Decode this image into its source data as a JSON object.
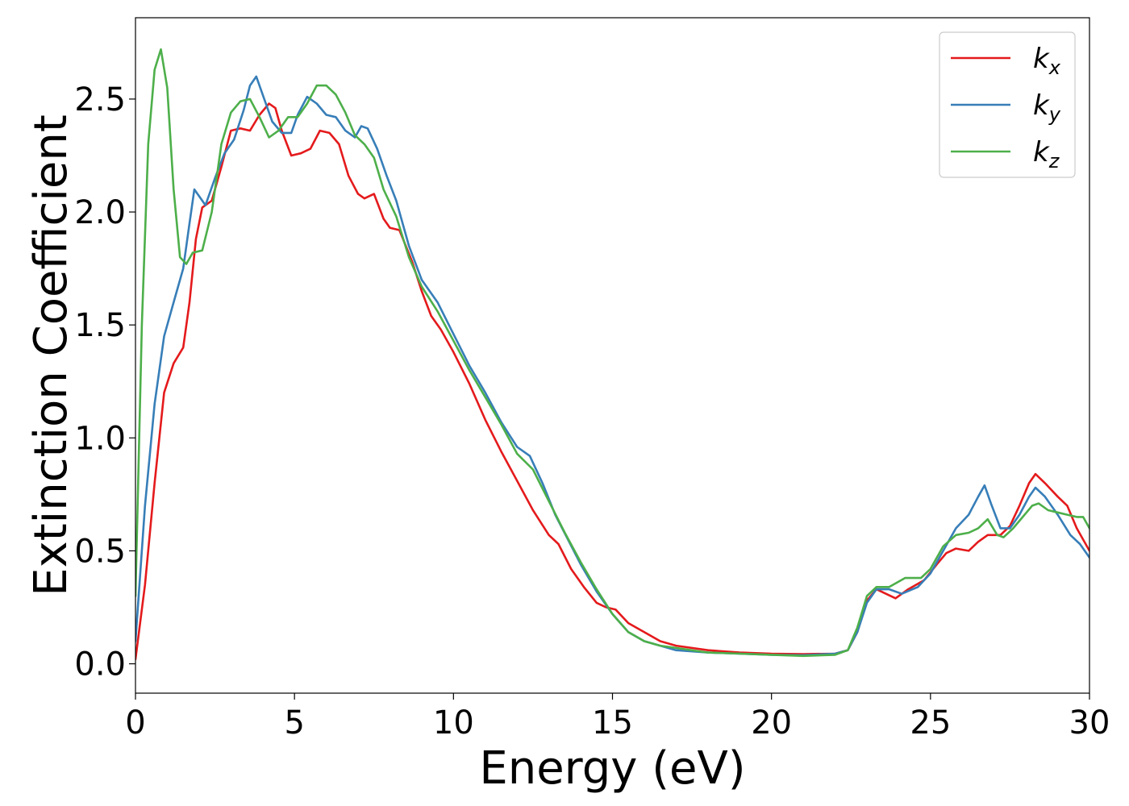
{
  "chart_data": {
    "type": "line",
    "xlabel": "Energy (eV)",
    "ylabel": "Extinction Coefficient",
    "xlim": [
      0,
      30
    ],
    "ylim": [
      -0.13,
      2.86
    ],
    "xticks": [
      "0",
      "5",
      "10",
      "15",
      "20",
      "25",
      "30"
    ],
    "yticks": [
      "0.0",
      "0.5",
      "1.0",
      "1.5",
      "2.0",
      "2.5"
    ],
    "grid": false,
    "legend_position": "top-right",
    "series": [
      {
        "name": "k_x",
        "label_base": "k",
        "label_sub": "x",
        "color": "#e41a1c",
        "points": [
          [
            0,
            0.02
          ],
          [
            0.3,
            0.35
          ],
          [
            0.6,
            0.8
          ],
          [
            0.9,
            1.2
          ],
          [
            1.2,
            1.33
          ],
          [
            1.5,
            1.4
          ],
          [
            1.7,
            1.6
          ],
          [
            1.9,
            1.88
          ],
          [
            2.1,
            2.02
          ],
          [
            2.4,
            2.05
          ],
          [
            2.7,
            2.2
          ],
          [
            3.0,
            2.36
          ],
          [
            3.3,
            2.37
          ],
          [
            3.6,
            2.36
          ],
          [
            3.9,
            2.43
          ],
          [
            4.2,
            2.48
          ],
          [
            4.4,
            2.46
          ],
          [
            4.6,
            2.36
          ],
          [
            4.9,
            2.25
          ],
          [
            5.2,
            2.26
          ],
          [
            5.5,
            2.28
          ],
          [
            5.8,
            2.36
          ],
          [
            6.1,
            2.35
          ],
          [
            6.4,
            2.3
          ],
          [
            6.7,
            2.16
          ],
          [
            7.0,
            2.08
          ],
          [
            7.2,
            2.06
          ],
          [
            7.5,
            2.08
          ],
          [
            7.8,
            1.97
          ],
          [
            8.0,
            1.93
          ],
          [
            8.3,
            1.92
          ],
          [
            8.7,
            1.78
          ],
          [
            9.0,
            1.65
          ],
          [
            9.3,
            1.54
          ],
          [
            9.6,
            1.48
          ],
          [
            10,
            1.38
          ],
          [
            10.5,
            1.24
          ],
          [
            11,
            1.08
          ],
          [
            11.5,
            0.94
          ],
          [
            12,
            0.81
          ],
          [
            12.5,
            0.68
          ],
          [
            13,
            0.57
          ],
          [
            13.3,
            0.53
          ],
          [
            13.7,
            0.42
          ],
          [
            14.1,
            0.34
          ],
          [
            14.5,
            0.27
          ],
          [
            14.8,
            0.25
          ],
          [
            15.1,
            0.24
          ],
          [
            15.5,
            0.18
          ],
          [
            16,
            0.14
          ],
          [
            16.5,
            0.1
          ],
          [
            17,
            0.08
          ],
          [
            18,
            0.06
          ],
          [
            19,
            0.05
          ],
          [
            20,
            0.045
          ],
          [
            21,
            0.043
          ],
          [
            22,
            0.045
          ],
          [
            22.4,
            0.06
          ],
          [
            22.7,
            0.14
          ],
          [
            23,
            0.28
          ],
          [
            23.3,
            0.33
          ],
          [
            23.6,
            0.31
          ],
          [
            23.9,
            0.29
          ],
          [
            24.3,
            0.33
          ],
          [
            24.8,
            0.37
          ],
          [
            25.2,
            0.44
          ],
          [
            25.5,
            0.49
          ],
          [
            25.8,
            0.51
          ],
          [
            26.2,
            0.5
          ],
          [
            26.5,
            0.54
          ],
          [
            26.8,
            0.57
          ],
          [
            27.2,
            0.57
          ],
          [
            27.5,
            0.61
          ],
          [
            27.8,
            0.7
          ],
          [
            28.1,
            0.8
          ],
          [
            28.3,
            0.84
          ],
          [
            28.6,
            0.8
          ],
          [
            29,
            0.74
          ],
          [
            29.3,
            0.7
          ],
          [
            29.6,
            0.6
          ],
          [
            30,
            0.5
          ]
        ]
      },
      {
        "name": "k_y",
        "label_base": "k",
        "label_sub": "y",
        "color": "#377eb8",
        "points": [
          [
            0,
            0.1
          ],
          [
            0.3,
            0.7
          ],
          [
            0.6,
            1.15
          ],
          [
            0.9,
            1.45
          ],
          [
            1.2,
            1.6
          ],
          [
            1.5,
            1.75
          ],
          [
            1.7,
            1.95
          ],
          [
            1.85,
            2.1
          ],
          [
            2.0,
            2.07
          ],
          [
            2.2,
            2.03
          ],
          [
            2.5,
            2.15
          ],
          [
            2.8,
            2.26
          ],
          [
            3.1,
            2.32
          ],
          [
            3.4,
            2.45
          ],
          [
            3.6,
            2.56
          ],
          [
            3.8,
            2.6
          ],
          [
            4.0,
            2.52
          ],
          [
            4.3,
            2.4
          ],
          [
            4.6,
            2.35
          ],
          [
            4.9,
            2.35
          ],
          [
            5.1,
            2.43
          ],
          [
            5.4,
            2.51
          ],
          [
            5.7,
            2.48
          ],
          [
            6.0,
            2.43
          ],
          [
            6.3,
            2.42
          ],
          [
            6.6,
            2.36
          ],
          [
            6.9,
            2.33
          ],
          [
            7.1,
            2.38
          ],
          [
            7.3,
            2.37
          ],
          [
            7.6,
            2.28
          ],
          [
            7.9,
            2.16
          ],
          [
            8.2,
            2.05
          ],
          [
            8.6,
            1.85
          ],
          [
            9.0,
            1.7
          ],
          [
            9.5,
            1.6
          ],
          [
            10,
            1.46
          ],
          [
            10.5,
            1.32
          ],
          [
            11,
            1.2
          ],
          [
            11.5,
            1.07
          ],
          [
            12,
            0.96
          ],
          [
            12.4,
            0.92
          ],
          [
            12.8,
            0.8
          ],
          [
            13.2,
            0.66
          ],
          [
            13.6,
            0.55
          ],
          [
            14,
            0.44
          ],
          [
            14.5,
            0.32
          ],
          [
            15,
            0.22
          ],
          [
            15.5,
            0.14
          ],
          [
            16,
            0.1
          ],
          [
            16.5,
            0.08
          ],
          [
            17,
            0.06
          ],
          [
            18,
            0.05
          ],
          [
            19,
            0.045
          ],
          [
            20,
            0.04
          ],
          [
            21,
            0.038
          ],
          [
            22,
            0.045
          ],
          [
            22.4,
            0.06
          ],
          [
            22.7,
            0.14
          ],
          [
            23,
            0.27
          ],
          [
            23.3,
            0.33
          ],
          [
            23.7,
            0.33
          ],
          [
            24.1,
            0.31
          ],
          [
            24.6,
            0.34
          ],
          [
            25,
            0.4
          ],
          [
            25.4,
            0.5
          ],
          [
            25.8,
            0.6
          ],
          [
            26.2,
            0.66
          ],
          [
            26.5,
            0.74
          ],
          [
            26.7,
            0.79
          ],
          [
            26.9,
            0.71
          ],
          [
            27.2,
            0.6
          ],
          [
            27.5,
            0.6
          ],
          [
            27.8,
            0.66
          ],
          [
            28.1,
            0.74
          ],
          [
            28.3,
            0.78
          ],
          [
            28.6,
            0.74
          ],
          [
            29,
            0.66
          ],
          [
            29.4,
            0.57
          ],
          [
            29.7,
            0.53
          ],
          [
            30,
            0.47
          ]
        ]
      },
      {
        "name": "k_z",
        "label_base": "k",
        "label_sub": "z",
        "color": "#4daf4a",
        "points": [
          [
            0,
            0.3
          ],
          [
            0.2,
            1.5
          ],
          [
            0.4,
            2.3
          ],
          [
            0.6,
            2.63
          ],
          [
            0.8,
            2.72
          ],
          [
            1.0,
            2.55
          ],
          [
            1.2,
            2.1
          ],
          [
            1.4,
            1.8
          ],
          [
            1.6,
            1.77
          ],
          [
            1.8,
            1.82
          ],
          [
            2.1,
            1.83
          ],
          [
            2.4,
            2.0
          ],
          [
            2.7,
            2.3
          ],
          [
            3.0,
            2.44
          ],
          [
            3.3,
            2.49
          ],
          [
            3.6,
            2.5
          ],
          [
            3.9,
            2.42
          ],
          [
            4.2,
            2.33
          ],
          [
            4.5,
            2.36
          ],
          [
            4.8,
            2.42
          ],
          [
            5.1,
            2.42
          ],
          [
            5.4,
            2.48
          ],
          [
            5.7,
            2.56
          ],
          [
            6.0,
            2.56
          ],
          [
            6.3,
            2.52
          ],
          [
            6.6,
            2.44
          ],
          [
            6.9,
            2.34
          ],
          [
            7.2,
            2.3
          ],
          [
            7.5,
            2.24
          ],
          [
            7.8,
            2.1
          ],
          [
            8.2,
            1.98
          ],
          [
            8.6,
            1.8
          ],
          [
            9.0,
            1.67
          ],
          [
            9.5,
            1.56
          ],
          [
            10,
            1.43
          ],
          [
            10.5,
            1.3
          ],
          [
            11,
            1.18
          ],
          [
            11.5,
            1.06
          ],
          [
            12,
            0.93
          ],
          [
            12.5,
            0.86
          ],
          [
            13,
            0.72
          ],
          [
            13.5,
            0.58
          ],
          [
            14,
            0.45
          ],
          [
            14.5,
            0.33
          ],
          [
            15,
            0.22
          ],
          [
            15.5,
            0.14
          ],
          [
            16,
            0.1
          ],
          [
            16.5,
            0.08
          ],
          [
            17,
            0.07
          ],
          [
            18,
            0.05
          ],
          [
            19,
            0.045
          ],
          [
            20,
            0.04
          ],
          [
            21,
            0.035
          ],
          [
            22,
            0.04
          ],
          [
            22.4,
            0.06
          ],
          [
            22.7,
            0.16
          ],
          [
            23,
            0.3
          ],
          [
            23.3,
            0.34
          ],
          [
            23.7,
            0.34
          ],
          [
            24.2,
            0.38
          ],
          [
            24.7,
            0.38
          ],
          [
            25,
            0.42
          ],
          [
            25.4,
            0.52
          ],
          [
            25.8,
            0.57
          ],
          [
            26.2,
            0.58
          ],
          [
            26.5,
            0.6
          ],
          [
            26.8,
            0.64
          ],
          [
            27.1,
            0.57
          ],
          [
            27.3,
            0.56
          ],
          [
            27.6,
            0.6
          ],
          [
            27.9,
            0.65
          ],
          [
            28.2,
            0.7
          ],
          [
            28.4,
            0.71
          ],
          [
            28.7,
            0.68
          ],
          [
            29,
            0.67
          ],
          [
            29.3,
            0.66
          ],
          [
            29.6,
            0.65
          ],
          [
            29.8,
            0.65
          ],
          [
            30,
            0.6
          ]
        ]
      }
    ]
  }
}
